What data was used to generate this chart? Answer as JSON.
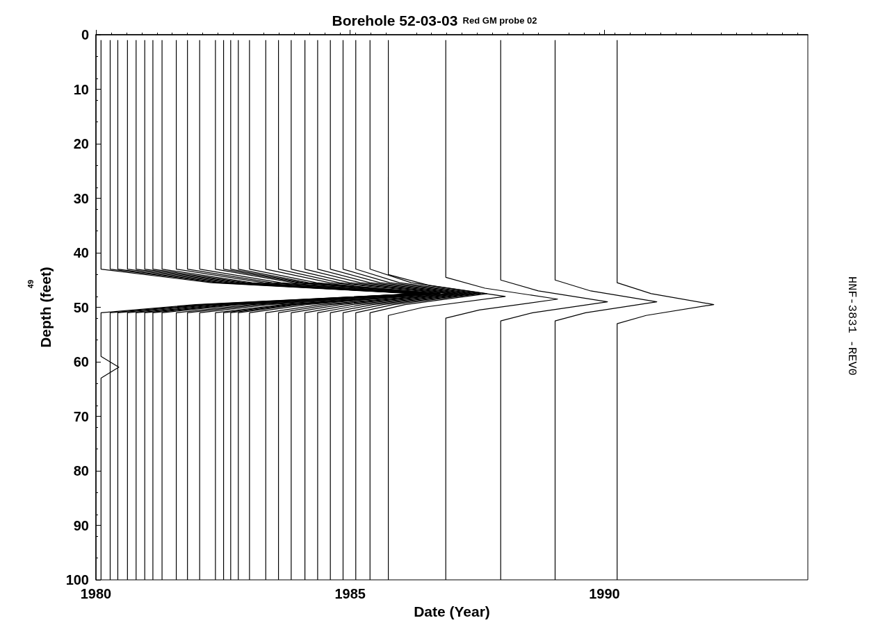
{
  "chart_data": {
    "type": "line",
    "title": "Borehole 52-03-03",
    "subtitle": "Red GM probe 02",
    "xlabel": "Date (Year)",
    "ylabel": "Depth (feet)",
    "annotations": [
      "HNF-3831 -REV0",
      "49"
    ],
    "color": "#000000",
    "marker": "none",
    "line_style": "solid",
    "grid": false,
    "xlim": [
      1980,
      1994
    ],
    "xticks": [
      1980,
      1985,
      1990
    ],
    "ylim": [
      100,
      0
    ],
    "yticks": [
      0,
      10,
      20,
      30,
      40,
      50,
      60,
      70,
      80,
      90,
      100
    ],
    "series": [
      {
        "x": [
          1980.1,
          1980.1,
          1982.27,
          1986.3,
          1981.96,
          1980.1,
          1980.1,
          1980.45,
          1980.1,
          1980.1
        ],
        "values": [
          1,
          43,
          45.5,
          47.5,
          49.5,
          51,
          59,
          61,
          63,
          100
        ]
      },
      {
        "x": [
          1980.28,
          1980.28,
          1982.39,
          1986.32,
          1982.09,
          1980.28,
          1980.28
        ],
        "values": [
          1,
          43,
          45.5,
          47.5,
          49.5,
          51,
          100
        ]
      },
      {
        "x": [
          1980.43,
          1980.43,
          1982.49,
          1986.31,
          1982.19,
          1980.43,
          1980.43
        ],
        "values": [
          1,
          43,
          45.5,
          47.5,
          49.5,
          51,
          100
        ]
      },
      {
        "x": [
          1980.62,
          1980.62,
          1982.62,
          1986.33,
          1982.33,
          1980.62,
          1980.62
        ],
        "values": [
          1,
          43,
          45.5,
          47.5,
          49.5,
          51,
          100
        ]
      },
      {
        "x": [
          1980.79,
          1980.79,
          1982.73,
          1986.34,
          1982.46,
          1980.79,
          1980.79
        ],
        "values": [
          1,
          43,
          45.5,
          47.5,
          49.5,
          51,
          100
        ]
      },
      {
        "x": [
          1980.96,
          1980.96,
          1982.85,
          1986.35,
          1982.58,
          1980.96,
          1980.96
        ],
        "values": [
          1,
          43,
          45.5,
          47.5,
          49.5,
          51,
          100
        ]
      },
      {
        "x": [
          1981.12,
          1981.12,
          1982.95,
          1986.35,
          1982.69,
          1981.12,
          1981.12
        ],
        "values": [
          1,
          43,
          45.5,
          47.5,
          49.5,
          51,
          100
        ]
      },
      {
        "x": [
          1981.3,
          1981.3,
          1983.07,
          1986.36,
          1982.82,
          1981.3,
          1981.3
        ],
        "values": [
          1,
          43,
          45.5,
          47.5,
          49.5,
          51,
          100
        ]
      },
      {
        "x": [
          1981.58,
          1981.58,
          1983.3,
          1986.48,
          1983.05,
          1981.58,
          1981.58
        ],
        "values": [
          1,
          43,
          45.5,
          47.5,
          49.5,
          51,
          100
        ]
      },
      {
        "x": [
          1981.8,
          1981.8,
          1983.46,
          1986.54,
          1983.22,
          1981.8,
          1981.8
        ],
        "values": [
          1,
          43,
          45.5,
          47.5,
          49.5,
          51,
          100
        ]
      },
      {
        "x": [
          1982.04,
          1982.04,
          1983.64,
          1986.62,
          1983.41,
          1982.04,
          1982.04
        ],
        "values": [
          1,
          43,
          45.5,
          47.5,
          49.5,
          51,
          100
        ]
      },
      {
        "x": [
          1982.35,
          1982.35,
          1983.89,
          1986.76,
          1983.67,
          1982.35,
          1982.35
        ],
        "values": [
          1,
          43,
          45.5,
          47.5,
          49.5,
          51,
          100
        ]
      },
      {
        "x": [
          1982.51,
          1982.51,
          1984.0,
          1986.76,
          1983.79,
          1982.51,
          1982.51
        ],
        "values": [
          1,
          43,
          45.5,
          47.5,
          49.5,
          51,
          100
        ]
      },
      {
        "x": [
          1982.65,
          1982.65,
          1984.08,
          1986.74,
          1983.88,
          1982.65,
          1982.65
        ],
        "values": [
          1,
          43,
          45.5,
          47.5,
          49.5,
          51,
          100
        ]
      },
      {
        "x": [
          1982.8,
          1982.8,
          1984.18,
          1986.73,
          1983.98,
          1982.8,
          1982.8
        ],
        "values": [
          1,
          43,
          45.5,
          47.5,
          49.5,
          51,
          100
        ]
      },
      {
        "x": [
          1983.02,
          1983.02,
          1984.34,
          1986.78,
          1984.15,
          1983.02,
          1983.02
        ],
        "values": [
          1,
          43,
          45.5,
          47.5,
          49.5,
          51,
          100
        ]
      },
      {
        "x": [
          1983.34,
          1983.34,
          1984.6,
          1986.94,
          1984.42,
          1983.34,
          1983.34
        ],
        "values": [
          1,
          43,
          45.5,
          47.5,
          49.5,
          51,
          100
        ]
      },
      {
        "x": [
          1983.59,
          1983.59,
          1984.79,
          1987.03,
          1984.62,
          1983.59,
          1983.59
        ],
        "values": [
          1,
          43,
          45.5,
          47.5,
          49.5,
          51,
          100
        ]
      },
      {
        "x": [
          1983.84,
          1983.84,
          1984.99,
          1987.12,
          1984.82,
          1983.84,
          1983.84
        ],
        "values": [
          1,
          43,
          45.5,
          47.5,
          49.5,
          51,
          100
        ]
      },
      {
        "x": [
          1984.11,
          1984.11,
          1985.2,
          1987.22,
          1985.04,
          1984.11,
          1984.11
        ],
        "values": [
          1,
          43,
          45.5,
          47.5,
          49.5,
          51,
          100
        ]
      },
      {
        "x": [
          1984.36,
          1984.36,
          1985.39,
          1987.31,
          1985.25,
          1984.36,
          1984.36
        ],
        "values": [
          1,
          43,
          45.5,
          47.5,
          49.5,
          51,
          100
        ]
      },
      {
        "x": [
          1984.61,
          1984.61,
          1985.59,
          1987.4,
          1985.45,
          1984.61,
          1984.61
        ],
        "values": [
          1,
          43,
          45.5,
          47.5,
          49.5,
          51,
          100
        ]
      },
      {
        "x": [
          1984.86,
          1984.86,
          1985.78,
          1987.49,
          1985.65,
          1984.86,
          1984.86
        ],
        "values": [
          1,
          43,
          45.5,
          47.5,
          49.5,
          51,
          100
        ]
      },
      {
        "x": [
          1985.11,
          1985.11,
          1985.97,
          1987.57,
          1985.85,
          1985.11,
          1985.11
        ],
        "values": [
          1,
          43,
          45.5,
          47.5,
          49.5,
          51,
          100
        ]
      },
      {
        "x": [
          1985.39,
          1985.39,
          1986.2,
          1987.69,
          1986.08,
          1985.39,
          1985.39
        ],
        "values": [
          1,
          43,
          45.5,
          47.5,
          49.5,
          51,
          100
        ]
      },
      {
        "x": [
          1985.75,
          1985.75,
          1986.56,
          1988.05,
          1986.44,
          1985.75,
          1985.75
        ],
        "values": [
          1,
          44,
          46,
          48,
          50,
          51.5,
          100
        ]
      },
      {
        "x": [
          1986.88,
          1986.88,
          1987.65,
          1989.08,
          1987.54,
          1986.88,
          1986.88
        ],
        "values": [
          1,
          44.5,
          46.5,
          48.5,
          50.5,
          52,
          100
        ]
      },
      {
        "x": [
          1987.96,
          1987.96,
          1988.7,
          1990.06,
          1988.59,
          1987.96,
          1987.96
        ],
        "values": [
          1,
          45,
          47,
          49,
          51,
          52.5,
          100
        ]
      },
      {
        "x": [
          1989.03,
          1989.03,
          1989.73,
          1991.03,
          1989.63,
          1989.03,
          1989.03
        ],
        "values": [
          1,
          45,
          47,
          49,
          51,
          52.5,
          100
        ]
      },
      {
        "x": [
          1990.25,
          1990.25,
          1990.92,
          1992.15,
          1990.82,
          1990.25,
          1990.25
        ],
        "values": [
          1,
          45.5,
          47.5,
          49.5,
          51.5,
          53,
          100
        ]
      }
    ]
  }
}
